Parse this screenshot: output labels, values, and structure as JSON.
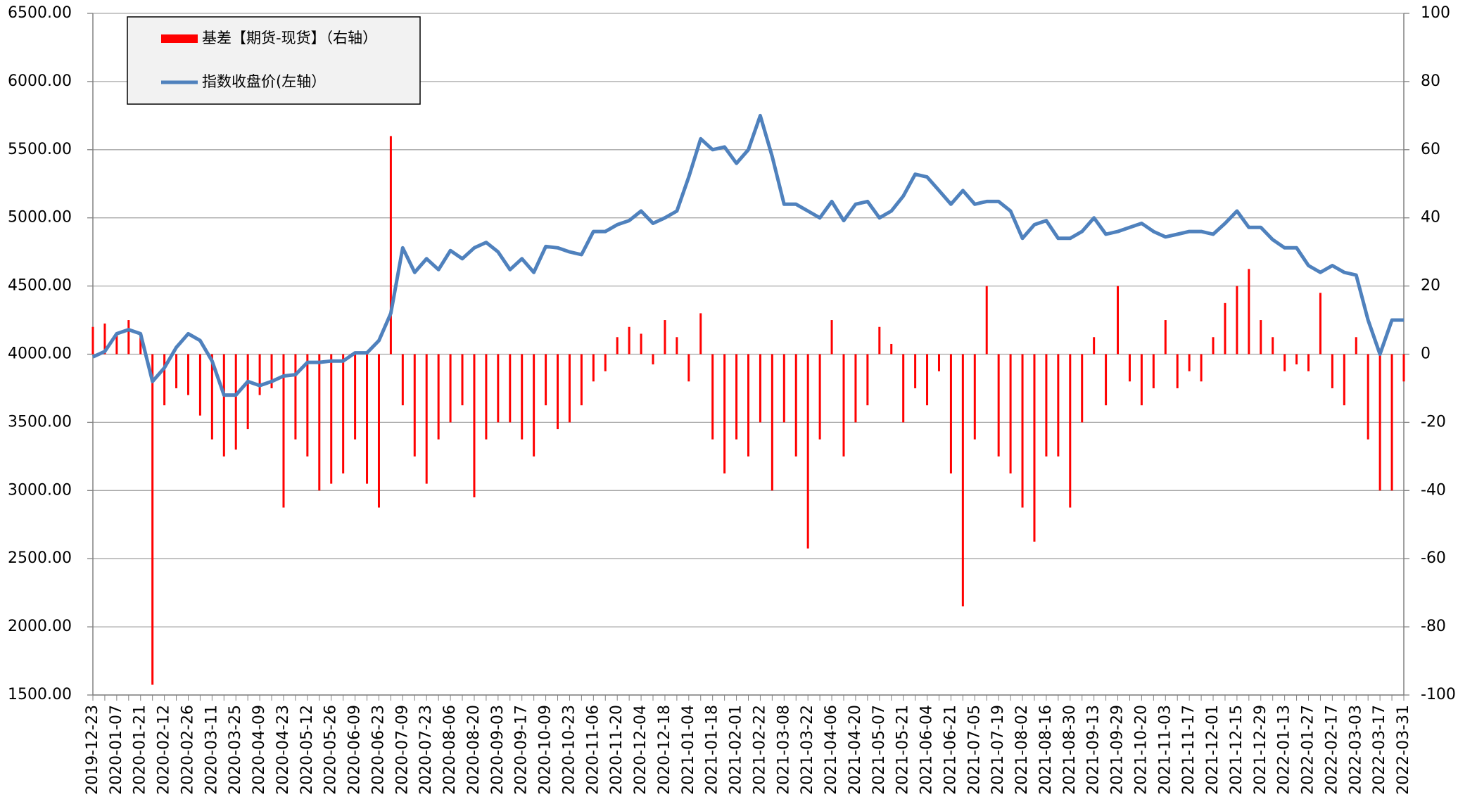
{
  "chart_data": {
    "type": "combo",
    "categories": [
      "2019-12-23",
      null,
      "2020-01-07",
      null,
      "2020-01-21",
      null,
      "2020-02-12",
      null,
      "2020-02-26",
      null,
      "2020-03-11",
      null,
      "2020-03-25",
      null,
      "2020-04-09",
      null,
      "2020-04-23",
      null,
      "2020-05-12",
      null,
      "2020-05-26",
      null,
      "2020-06-09",
      null,
      "2020-06-23",
      null,
      "2020-07-09",
      null,
      "2020-07-23",
      null,
      "2020-08-06",
      null,
      "2020-08-20",
      null,
      "2020-09-03",
      null,
      "2020-09-17",
      null,
      "2020-10-09",
      null,
      "2020-10-23",
      null,
      "2020-11-06",
      null,
      "2020-11-20",
      null,
      "2020-12-04",
      null,
      "2020-12-18",
      null,
      "2021-01-04",
      null,
      "2021-01-18",
      null,
      "2021-02-01",
      null,
      "2021-02-22",
      null,
      "2021-03-08",
      null,
      "2021-03-22",
      null,
      "2021-04-06",
      null,
      "2021-04-20",
      null,
      "2021-05-07",
      null,
      "2021-05-21",
      null,
      "2021-06-04",
      null,
      "2021-06-21",
      null,
      "2021-07-05",
      null,
      "2021-07-19",
      null,
      "2021-08-02",
      null,
      "2021-08-16",
      null,
      "2021-08-30",
      null,
      "2021-09-13",
      null,
      "2021-09-29",
      null,
      "2021-10-20",
      null,
      "2021-11-03",
      null,
      "2021-11-17",
      null,
      "2021-12-01",
      null,
      "2021-12-15",
      null,
      "2021-12-29",
      null,
      "2022-01-13",
      null,
      "2022-01-27",
      null,
      "2022-02-17",
      null,
      "2022-03-03",
      null,
      "2022-03-17",
      null,
      "2022-03-31"
    ],
    "series": [
      {
        "name": "基差【期货-现货】（右轴）",
        "type": "bar",
        "axis": "y2",
        "color": "#ff0000",
        "values": [
          8,
          9,
          6,
          10,
          5,
          -97,
          -15,
          -10,
          -12,
          -18,
          -25,
          -30,
          -28,
          -22,
          -12,
          -10,
          -45,
          -25,
          -30,
          -40,
          -38,
          -35,
          -25,
          -38,
          -45,
          64,
          -15,
          -30,
          -38,
          -25,
          -20,
          -15,
          -42,
          -25,
          -20,
          -20,
          -25,
          -30,
          -15,
          -22,
          -20,
          -15,
          -8,
          -5,
          5,
          8,
          6,
          -3,
          10,
          5,
          -8,
          12,
          -25,
          -35,
          -25,
          -30,
          -20,
          -40,
          -20,
          -30,
          -57,
          -25,
          10,
          -30,
          -20,
          -15,
          8,
          3,
          -20,
          -10,
          -15,
          -5,
          -35,
          -74,
          -25,
          20,
          -30,
          -35,
          -45,
          -55,
          -30,
          -30,
          -45,
          -20,
          5,
          -15,
          20,
          -8,
          -15,
          -10,
          10,
          -10,
          -5,
          -8,
          5,
          15,
          20,
          25,
          10,
          5,
          -5,
          -3,
          -5,
          18,
          -10,
          -15,
          5,
          -25,
          -40,
          -40,
          -8
        ]
      },
      {
        "name": "指数收盘价(左轴）",
        "type": "line",
        "color": "#4f81bd",
        "values": [
          3980,
          4020,
          4150,
          4180,
          4150,
          3800,
          3900,
          4050,
          4150,
          4100,
          3950,
          3700,
          3700,
          3800,
          3770,
          3800,
          3840,
          3850,
          3940,
          3940,
          3950,
          3950,
          4010,
          4010,
          4100,
          4300,
          4780,
          4600,
          4700,
          4620,
          4760,
          4700,
          4780,
          4820,
          4750,
          4620,
          4700,
          4600,
          4790,
          4780,
          4750,
          4730,
          4900,
          4900,
          4950,
          4980,
          5050,
          4960,
          5000,
          5050,
          5300,
          5580,
          5500,
          5520,
          5400,
          5500,
          5750,
          5450,
          5100,
          5100,
          5050,
          5000,
          5120,
          4980,
          5100,
          5120,
          5000,
          5050,
          5160,
          5320,
          5300,
          5200,
          5100,
          5200,
          5100,
          5120,
          5120,
          5050,
          4850,
          4950,
          4980,
          4850,
          4850,
          4900,
          5000,
          4880,
          4900,
          4930,
          4960,
          4900,
          4860,
          4880,
          4900,
          4900,
          4880,
          4960,
          5050,
          4930,
          4930,
          4840,
          4780,
          4780,
          4650,
          4600,
          4650,
          4600,
          4580,
          4250,
          4000,
          4250,
          4250
        ]
      }
    ],
    "ylim": [
      1500,
      6500
    ],
    "yticks": [
      {
        "value": 1500,
        "label": "1500.00"
      },
      {
        "value": 2000,
        "label": "2000.00"
      },
      {
        "value": 2500,
        "label": "2500.00"
      },
      {
        "value": 3000,
        "label": "3000.00"
      },
      {
        "value": 3500,
        "label": "3500.00"
      },
      {
        "value": 4000,
        "label": "4000.00"
      },
      {
        "value": 4500,
        "label": "4500.00"
      },
      {
        "value": 5000,
        "label": "5000.00"
      },
      {
        "value": 5500,
        "label": "5500.00"
      },
      {
        "value": 6000,
        "label": "6000.00"
      },
      {
        "value": 6500,
        "label": "6500.00"
      }
    ],
    "y2lim": [
      -100,
      100
    ],
    "y2ticks": [
      -100,
      -80,
      -60,
      -40,
      -20,
      0,
      20,
      40,
      60,
      80,
      100
    ],
    "grid": true,
    "legend": "top-left"
  }
}
